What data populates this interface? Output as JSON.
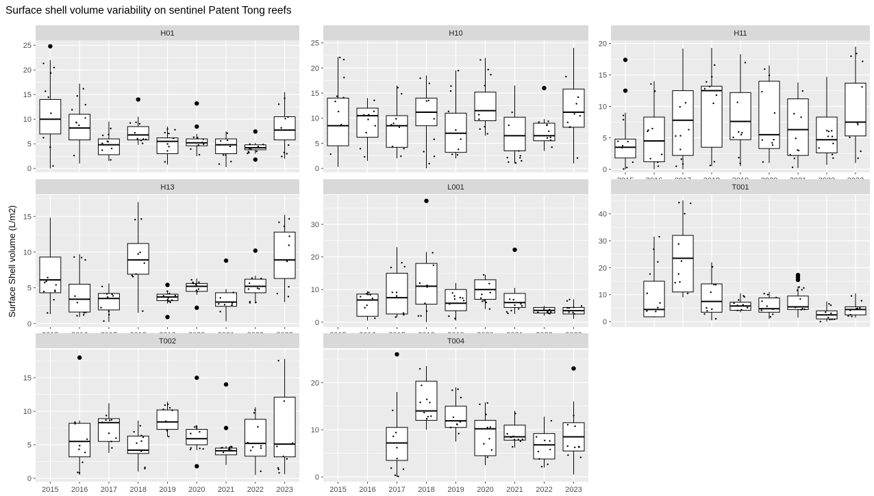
{
  "chart_data": {
    "type": "boxplot",
    "title": "Surface shell volume variability on sentinel Patent Tong reefs",
    "xlabel": "",
    "ylabel": "Surface Shell volume (L/m2)",
    "categories": [
      "2015",
      "2016",
      "2017",
      "2018",
      "2019",
      "2020",
      "2021",
      "2022",
      "2023"
    ],
    "facets": [
      {
        "name": "H01",
        "ylim": [
          -0.8,
          26
        ],
        "yticks": [
          0,
          5,
          10,
          15,
          20,
          25
        ],
        "boxes": [
          {
            "x": "2015",
            "min": 0,
            "q1": 7.0,
            "median": 10.0,
            "q3": 14.0,
            "max": 22.0,
            "outliers": [
              24.8
            ]
          },
          {
            "x": "2016",
            "min": 1.0,
            "q1": 5.8,
            "median": 8.2,
            "q3": 11.0,
            "max": 17.2,
            "outliers": []
          },
          {
            "x": "2017",
            "min": 1.5,
            "q1": 2.8,
            "median": 4.8,
            "q3": 6.0,
            "max": 9.5,
            "outliers": []
          },
          {
            "x": "2018",
            "min": 4.8,
            "q1": 5.8,
            "median": 6.8,
            "q3": 8.5,
            "max": 10.5,
            "outliers": [
              14.0
            ]
          },
          {
            "x": "2019",
            "min": 0.8,
            "q1": 3.0,
            "median": 5.5,
            "q3": 6.2,
            "max": 8.5,
            "outliers": []
          },
          {
            "x": "2020",
            "min": 2.5,
            "q1": 4.6,
            "median": 5.2,
            "q3": 6.0,
            "max": 7.0,
            "outliers": [
              8.5,
              13.2
            ]
          },
          {
            "x": "2021",
            "min": 0.3,
            "q1": 3.0,
            "median": 4.8,
            "q3": 6.0,
            "max": 7.5,
            "outliers": []
          },
          {
            "x": "2022",
            "min": 3.0,
            "q1": 3.8,
            "median": 4.2,
            "q3": 4.8,
            "max": 5.2,
            "outliers": [
              1.8,
              7.5
            ]
          },
          {
            "x": "2023",
            "min": 2.0,
            "q1": 5.8,
            "median": 7.8,
            "q3": 10.5,
            "max": 15.5,
            "outliers": []
          }
        ]
      },
      {
        "name": "H10",
        "ylim": [
          -0.8,
          25.5
        ],
        "yticks": [
          0,
          5,
          10,
          15,
          20,
          25
        ],
        "boxes": [
          {
            "x": "2015",
            "min": 0.3,
            "q1": 4.5,
            "median": 8.5,
            "q3": 14.0,
            "max": 22.2,
            "outliers": []
          },
          {
            "x": "2016",
            "min": 1.5,
            "q1": 6.2,
            "median": 10.5,
            "q3": 12.0,
            "max": 14.0,
            "outliers": []
          },
          {
            "x": "2017",
            "min": 2.0,
            "q1": 4.2,
            "median": 8.5,
            "q3": 10.5,
            "max": 16.5,
            "outliers": []
          },
          {
            "x": "2018",
            "min": 0,
            "q1": 8.5,
            "median": 11.2,
            "q3": 14.0,
            "max": 18.5,
            "outliers": []
          },
          {
            "x": "2019",
            "min": 2.0,
            "q1": 3.2,
            "median": 7.0,
            "q3": 11.0,
            "max": 19.5,
            "outliers": []
          },
          {
            "x": "2020",
            "min": 6.5,
            "q1": 9.5,
            "median": 11.5,
            "q3": 15.2,
            "max": 22.0,
            "outliers": []
          },
          {
            "x": "2021",
            "min": 1.0,
            "q1": 3.5,
            "median": 6.5,
            "q3": 10.2,
            "max": 16.5,
            "outliers": []
          },
          {
            "x": "2022",
            "min": 3.5,
            "q1": 5.5,
            "median": 6.5,
            "q3": 9.0,
            "max": 9.8,
            "outliers": [
              16.0
            ]
          },
          {
            "x": "2023",
            "min": 1.0,
            "q1": 8.2,
            "median": 11.2,
            "q3": 15.8,
            "max": 24.0,
            "outliers": []
          }
        ]
      },
      {
        "name": "H11",
        "ylim": [
          -0.5,
          20.5
        ],
        "yticks": [
          0,
          5,
          10,
          15,
          20
        ],
        "boxes": [
          {
            "x": "2015",
            "min": 0,
            "q1": 1.8,
            "median": 3.5,
            "q3": 4.8,
            "max": 9.0,
            "outliers": [
              12.5,
              17.4
            ]
          },
          {
            "x": "2016",
            "min": 0,
            "q1": 1.2,
            "median": 4.5,
            "q3": 8.3,
            "max": 14.0,
            "outliers": []
          },
          {
            "x": "2017",
            "min": 0,
            "q1": 2.2,
            "median": 7.8,
            "q3": 12.5,
            "max": 19.2,
            "outliers": []
          },
          {
            "x": "2018",
            "min": 0.5,
            "q1": 3.5,
            "median": 12.5,
            "q3": 13.2,
            "max": 19.3,
            "outliers": []
          },
          {
            "x": "2019",
            "min": 0.5,
            "q1": 4.7,
            "median": 7.6,
            "q3": 12.2,
            "max": 18.3,
            "outliers": []
          },
          {
            "x": "2020",
            "min": 1.0,
            "q1": 3.3,
            "median": 5.5,
            "q3": 14.0,
            "max": 16.5,
            "outliers": []
          },
          {
            "x": "2021",
            "min": 0.2,
            "q1": 2.2,
            "median": 6.3,
            "q3": 11.2,
            "max": 13.8,
            "outliers": []
          },
          {
            "x": "2022",
            "min": 0.7,
            "q1": 2.6,
            "median": 4.7,
            "q3": 8.3,
            "max": 14.7,
            "outliers": []
          },
          {
            "x": "2023",
            "min": 1.0,
            "q1": 5.3,
            "median": 7.5,
            "q3": 13.7,
            "max": 19.5,
            "outliers": []
          }
        ]
      },
      {
        "name": "H13",
        "ylim": [
          -0.5,
          18
        ],
        "yticks": [
          0,
          5,
          10,
          15
        ],
        "boxes": [
          {
            "x": "2015",
            "min": 1.3,
            "q1": 4.3,
            "median": 6.1,
            "q3": 9.3,
            "max": 14.8,
            "outliers": []
          },
          {
            "x": "2016",
            "min": 0.9,
            "q1": 1.6,
            "median": 3.4,
            "q3": 5.5,
            "max": 9.7,
            "outliers": []
          },
          {
            "x": "2017",
            "min": 0.2,
            "q1": 1.9,
            "median": 3.5,
            "q3": 4.2,
            "max": 5.6,
            "outliers": []
          },
          {
            "x": "2018",
            "min": 1.5,
            "q1": 6.9,
            "median": 8.9,
            "q3": 11.2,
            "max": 17.0,
            "outliers": []
          },
          {
            "x": "2019",
            "min": 2.8,
            "q1": 3.2,
            "median": 3.7,
            "q3": 4.1,
            "max": 4.6,
            "outliers": [
              0.9,
              5.4
            ]
          },
          {
            "x": "2020",
            "min": 4.0,
            "q1": 4.5,
            "median": 5.2,
            "q3": 5.6,
            "max": 6.3,
            "outliers": [
              2.2
            ]
          },
          {
            "x": "2021",
            "min": 0.3,
            "q1": 2.4,
            "median": 3.0,
            "q3": 4.3,
            "max": 4.8,
            "outliers": [
              8.8
            ]
          },
          {
            "x": "2022",
            "min": 2.8,
            "q1": 4.3,
            "median": 5.2,
            "q3": 6.2,
            "max": 6.7,
            "outliers": [
              10.2
            ]
          },
          {
            "x": "2023",
            "min": 3.0,
            "q1": 6.3,
            "median": 8.9,
            "q3": 12.8,
            "max": 15.2,
            "outliers": []
          }
        ]
      },
      {
        "name": "L001",
        "ylim": [
          -1.5,
          39
        ],
        "yticks": [
          0,
          10,
          20,
          30
        ],
        "boxes": [
          {
            "x": "2016",
            "min": 0.5,
            "q1": 1.8,
            "median": 6.8,
            "q3": 8.6,
            "max": 9.5,
            "outliers": []
          },
          {
            "x": "2017",
            "min": 1.5,
            "q1": 2.5,
            "median": 7.5,
            "q3": 15.0,
            "max": 23.0,
            "outliers": []
          },
          {
            "x": "2018",
            "min": 0,
            "q1": 5.5,
            "median": 11.0,
            "q3": 18.0,
            "max": 21.5,
            "outliers": [
              37.2
            ]
          },
          {
            "x": "2019",
            "min": 0.5,
            "q1": 3.5,
            "median": 5.8,
            "q3": 10.0,
            "max": 12.0,
            "outliers": []
          },
          {
            "x": "2020",
            "min": 4.0,
            "q1": 7.0,
            "median": 10.0,
            "q3": 13.0,
            "max": 14.5,
            "outliers": []
          },
          {
            "x": "2021",
            "min": 2.5,
            "q1": 4.5,
            "median": 6.0,
            "q3": 8.8,
            "max": 10.5,
            "outliers": [
              22.2
            ]
          },
          {
            "x": "2022",
            "min": 2.0,
            "q1": 2.8,
            "median": 3.6,
            "q3": 4.5,
            "max": 5.0,
            "outliers": []
          },
          {
            "x": "2023",
            "min": 1.0,
            "q1": 2.5,
            "median": 3.5,
            "q3": 4.5,
            "max": 7.0,
            "outliers": []
          }
        ]
      },
      {
        "name": "T001",
        "ylim": [
          -2,
          47
        ],
        "yticks": [
          0,
          10,
          20,
          30,
          40
        ],
        "boxes": [
          {
            "x": "2016",
            "min": 1.5,
            "q1": 1.8,
            "median": 4.5,
            "q3": 15.0,
            "max": 31.5,
            "outliers": []
          },
          {
            "x": "2017",
            "min": 9.0,
            "q1": 11.0,
            "median": 23.5,
            "q3": 32.0,
            "max": 45.0,
            "outliers": []
          },
          {
            "x": "2018",
            "min": 0.5,
            "q1": 3.5,
            "median": 7.5,
            "q3": 14.0,
            "max": 22.0,
            "outliers": []
          },
          {
            "x": "2019",
            "min": 3.5,
            "q1": 4.2,
            "median": 5.8,
            "q3": 7.2,
            "max": 10.5,
            "outliers": []
          },
          {
            "x": "2020",
            "min": 1.0,
            "q1": 3.5,
            "median": 4.8,
            "q3": 8.8,
            "max": 11.0,
            "outliers": []
          },
          {
            "x": "2021",
            "min": 1.5,
            "q1": 4.5,
            "median": 5.5,
            "q3": 9.5,
            "max": 13.0,
            "outliers": [
              15.5,
              16.5,
              17.3
            ]
          },
          {
            "x": "2022",
            "min": 0,
            "q1": 1.0,
            "median": 2.5,
            "q3": 4.0,
            "max": 7.5,
            "outliers": []
          },
          {
            "x": "2023",
            "min": 1.5,
            "q1": 2.5,
            "median": 4.5,
            "q3": 5.5,
            "max": 10.5,
            "outliers": []
          }
        ]
      },
      {
        "name": "T002",
        "ylim": [
          -0.5,
          19.2
        ],
        "yticks": [
          0,
          5,
          10,
          15
        ],
        "boxes": [
          {
            "x": "2016",
            "min": 0.5,
            "q1": 3.2,
            "median": 5.5,
            "q3": 8.2,
            "max": 8.6,
            "outliers": [
              18.0
            ]
          },
          {
            "x": "2017",
            "min": 3.8,
            "q1": 5.5,
            "median": 8.3,
            "q3": 8.9,
            "max": 11.2,
            "outliers": []
          },
          {
            "x": "2018",
            "min": 1.0,
            "q1": 3.7,
            "median": 4.2,
            "q3": 6.3,
            "max": 8.6,
            "outliers": []
          },
          {
            "x": "2019",
            "min": 6.2,
            "q1": 7.3,
            "median": 8.4,
            "q3": 10.2,
            "max": 11.4,
            "outliers": []
          },
          {
            "x": "2020",
            "min": 4.2,
            "q1": 5.0,
            "median": 5.9,
            "q3": 7.3,
            "max": 7.8,
            "outliers": [
              1.8,
              15.0
            ]
          },
          {
            "x": "2021",
            "min": 2.0,
            "q1": 3.5,
            "median": 4.1,
            "q3": 4.5,
            "max": 4.8,
            "outliers": [
              7.5,
              14.0
            ]
          },
          {
            "x": "2022",
            "min": 0.5,
            "q1": 3.3,
            "median": 5.2,
            "q3": 8.8,
            "max": 10.6,
            "outliers": []
          },
          {
            "x": "2023",
            "min": 0.6,
            "q1": 3.2,
            "median": 5.1,
            "q3": 12.1,
            "max": 17.8,
            "outliers": []
          }
        ]
      },
      {
        "name": "T004",
        "ylim": [
          -1,
          27
        ],
        "yticks": [
          0,
          10,
          20
        ],
        "boxes": [
          {
            "x": "2017",
            "min": 0,
            "q1": 3.5,
            "median": 7.2,
            "q3": 10.5,
            "max": 18.0,
            "outliers": [
              26.0
            ]
          },
          {
            "x": "2018",
            "min": 10.0,
            "q1": 12.0,
            "median": 14.0,
            "q3": 20.3,
            "max": 23.5,
            "outliers": []
          },
          {
            "x": "2019",
            "min": 7.5,
            "q1": 10.5,
            "median": 11.9,
            "q3": 15.0,
            "max": 19.0,
            "outliers": []
          },
          {
            "x": "2020",
            "min": 2.5,
            "q1": 4.5,
            "median": 10.2,
            "q3": 12.0,
            "max": 15.8,
            "outliers": []
          },
          {
            "x": "2021",
            "min": 6.2,
            "q1": 7.8,
            "median": 8.5,
            "q3": 11.0,
            "max": 14.0,
            "outliers": []
          },
          {
            "x": "2022",
            "min": 2.0,
            "q1": 3.8,
            "median": 6.8,
            "q3": 9.2,
            "max": 12.8,
            "outliers": []
          },
          {
            "x": "2023",
            "min": 0.5,
            "q1": 5.5,
            "median": 8.5,
            "q3": 11.5,
            "max": 16.0,
            "outliers": [
              23.0
            ]
          }
        ]
      }
    ],
    "panel_background": "#ebebeb",
    "strip_background": "#d9d9d9",
    "box_fill": "#ffffff",
    "line_color": "#000000",
    "grid": true
  }
}
